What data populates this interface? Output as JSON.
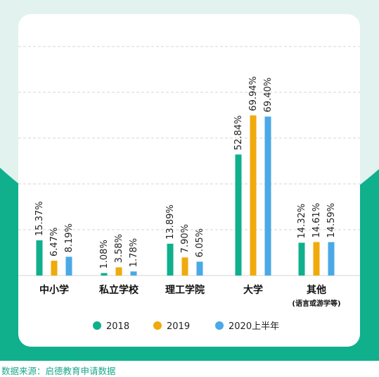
{
  "chart_data": {
    "type": "bar",
    "title": "",
    "xlabel": "",
    "ylabel": "",
    "ylim": [
      0,
      100
    ],
    "grid": "horizontal dashed",
    "legend_position": "bottom",
    "categories": [
      {
        "name": "中小学",
        "sub": ""
      },
      {
        "name": "私立学校",
        "sub": ""
      },
      {
        "name": "理工学院",
        "sub": ""
      },
      {
        "name": "大学",
        "sub": ""
      },
      {
        "name": "其他",
        "sub": "(语言或游学等)"
      }
    ],
    "series": [
      {
        "name": "2018",
        "color": "#10b08c",
        "values": [
          15.37,
          1.08,
          13.89,
          52.84,
          14.32
        ],
        "labels": [
          "15.37%",
          "1.08%",
          "13.89%",
          "52.84%",
          "14.32%"
        ]
      },
      {
        "name": "2019",
        "color": "#f0aa0c",
        "values": [
          6.47,
          3.58,
          7.9,
          69.94,
          14.61
        ],
        "labels": [
          "6.47%",
          "3.58%",
          "7.90%",
          "69.94%",
          "14.61%"
        ]
      },
      {
        "name": "2020上半年",
        "color": "#4aa9e6",
        "values": [
          8.19,
          1.78,
          6.05,
          69.4,
          14.59
        ],
        "labels": [
          "8.19%",
          "1.78%",
          "6.05%",
          "69.40%",
          "14.59%"
        ]
      }
    ]
  },
  "source_note": "数据来源：启德教育申请数据"
}
